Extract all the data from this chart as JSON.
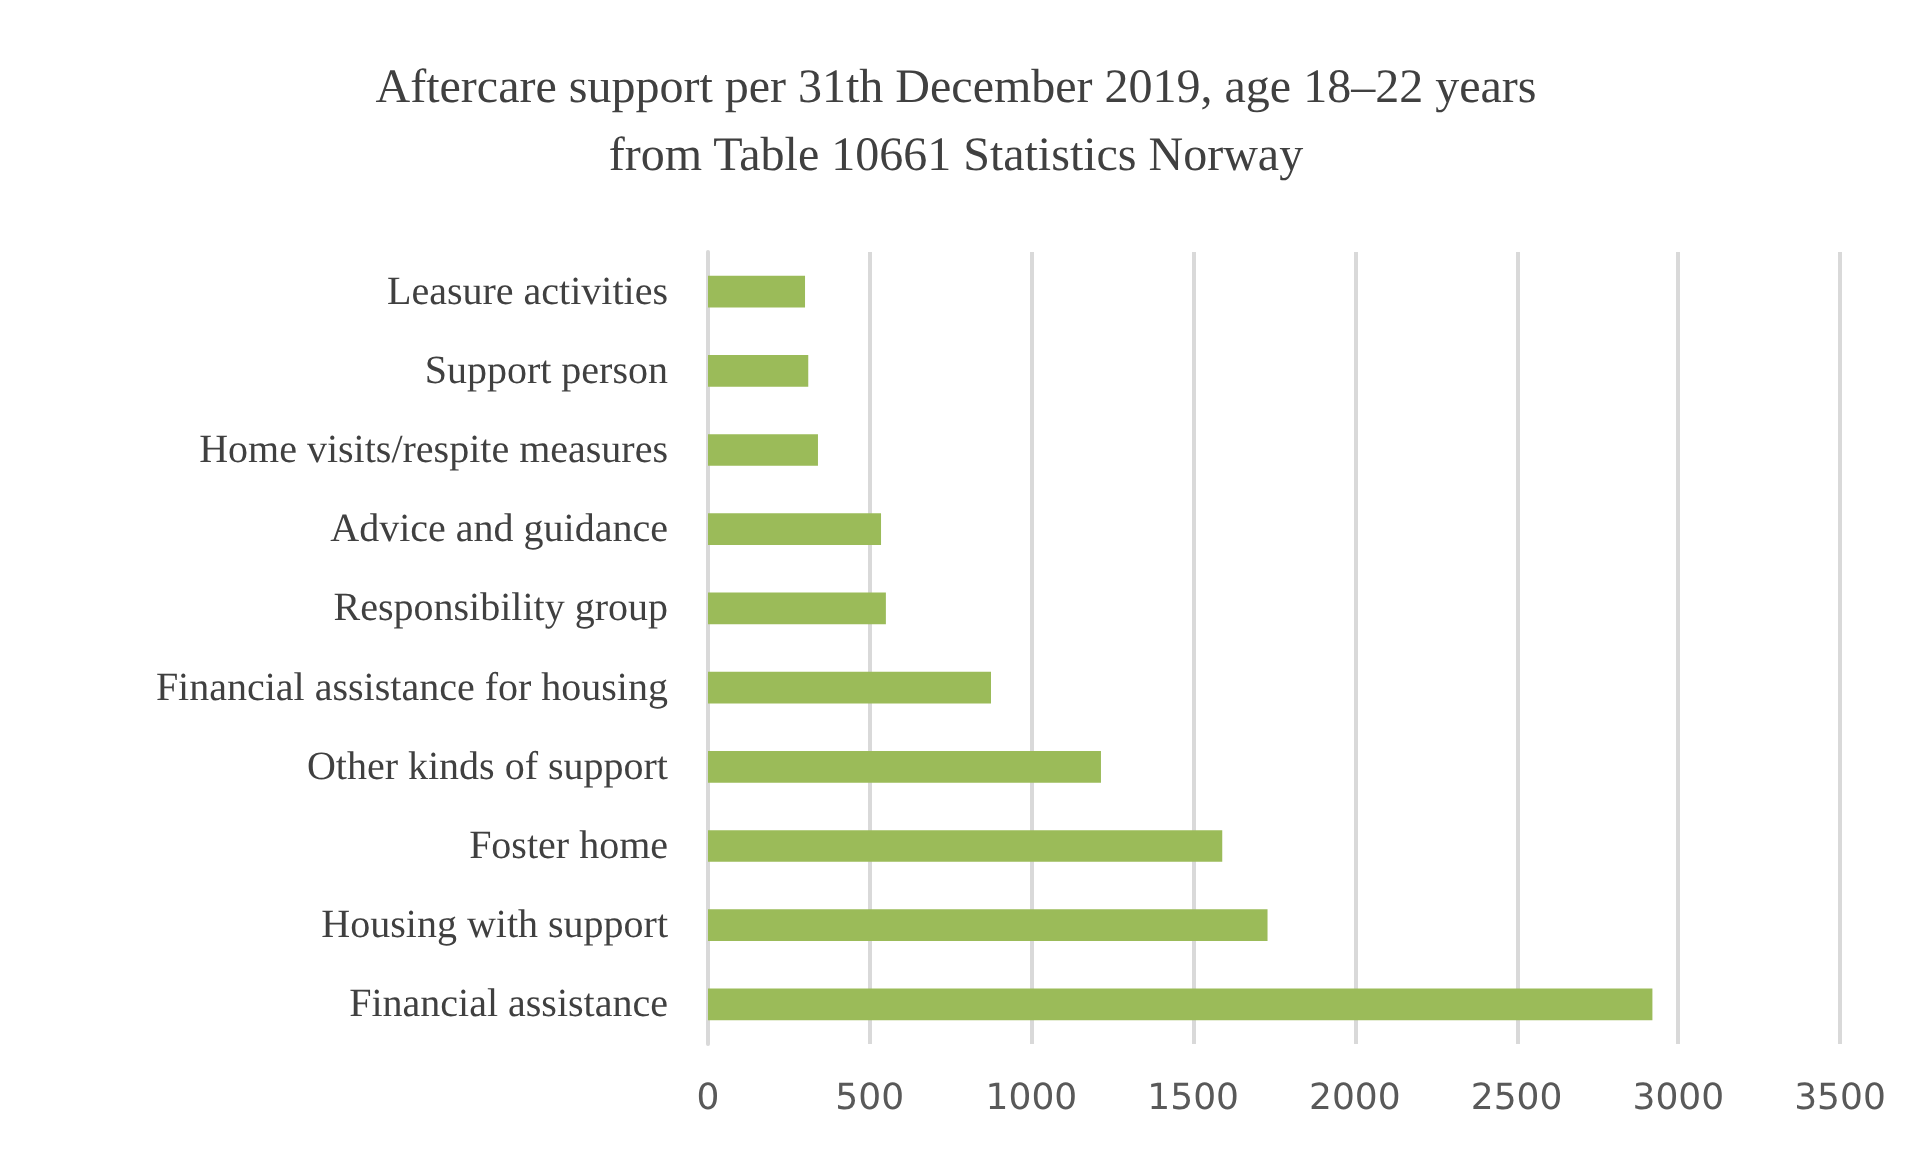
{
  "chart_data": {
    "type": "bar",
    "orientation": "horizontal",
    "title": "Aftercare support per 31th December 2019, age 18–22 years\nfrom Table 10661 Statistics Norway",
    "categories": [
      "Leasure activities",
      "Support person",
      "Home visits/respite measures",
      "Advice and guidance",
      "Responsibility group",
      "Financial assistance for housing",
      "Other kinds of support",
      "Foster home",
      "Housing with support",
      "Financial assistance"
    ],
    "values": [
      300,
      310,
      340,
      535,
      550,
      875,
      1215,
      1590,
      1730,
      2920
    ],
    "color": "#9bbb59",
    "xlim": [
      0,
      3500
    ],
    "xticks": [
      0,
      500,
      1000,
      1500,
      2000,
      2500,
      3000,
      3500
    ],
    "grid": "x"
  }
}
